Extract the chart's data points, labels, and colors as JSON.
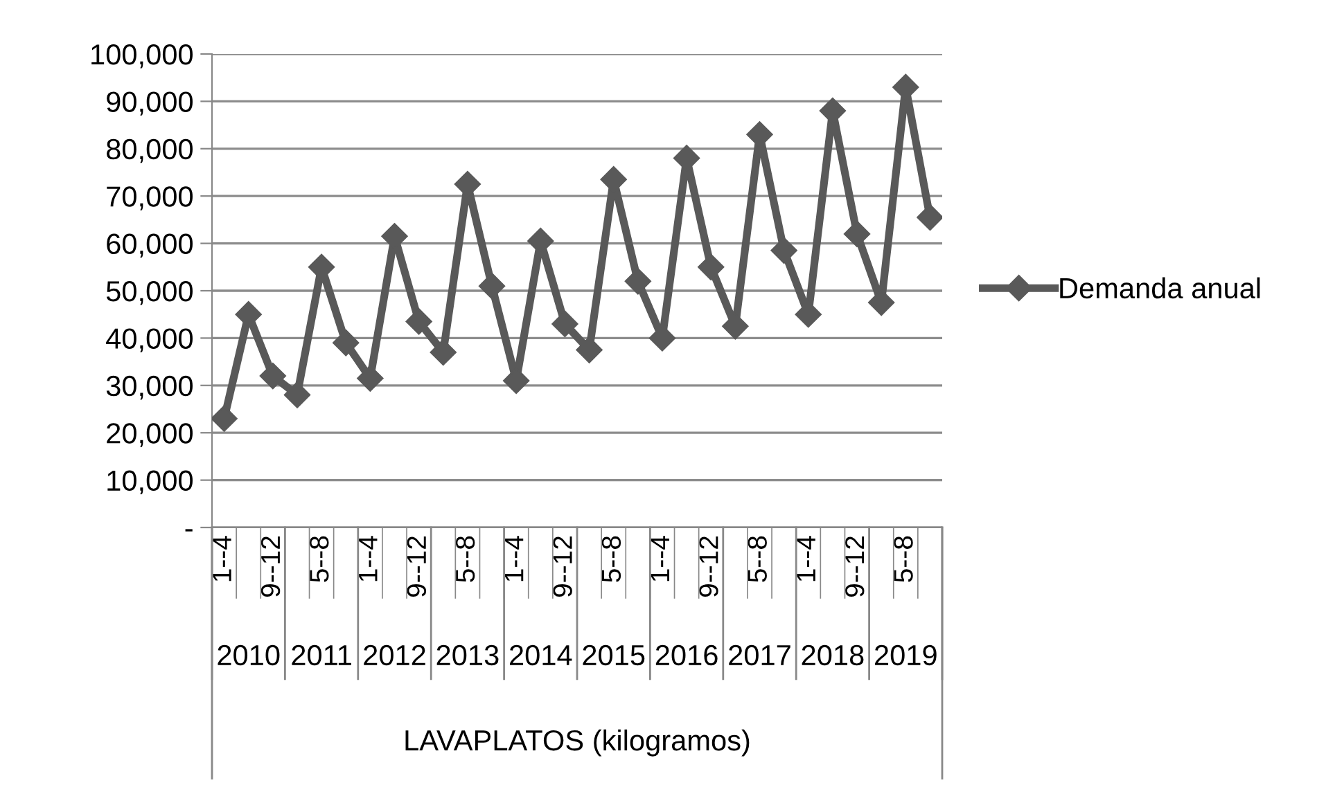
{
  "chart_data": {
    "type": "line",
    "categories": [
      "1--4",
      null,
      "9--12",
      null,
      "5--8",
      null,
      "1--4",
      null,
      "9--12",
      null,
      "5--8",
      null,
      "1--4",
      null,
      "9--12",
      null,
      "5--8",
      null,
      "1--4",
      null,
      "9--12",
      null,
      "5--8",
      null,
      "1--4",
      null,
      "9--12",
      null,
      "5--8",
      null
    ],
    "series": [
      {
        "name": "Demanda anual",
        "color": "#595959",
        "values": [
          23000,
          45000,
          32000,
          28000,
          55000,
          39000,
          31500,
          61500,
          43500,
          37000,
          72500,
          51000,
          31000,
          60500,
          43000,
          37500,
          73500,
          52000,
          40000,
          78000,
          55000,
          42500,
          83000,
          58500,
          45000,
          88000,
          62000,
          47500,
          93000,
          65500
        ]
      }
    ],
    "xlabel": "LAVAPLATOS (kilogramos)",
    "annotations": [
      "2010",
      "2011",
      "2012",
      "2013",
      "2014",
      "2015",
      "2016",
      "2017",
      "2018",
      "2019"
    ],
    "ylim": [
      0,
      100000
    ],
    "yticks": [
      {
        "value": 0,
        "label": "-"
      },
      {
        "value": 10000,
        "label": "10,000"
      },
      {
        "value": 20000,
        "label": "20,000"
      },
      {
        "value": 30000,
        "label": "30,000"
      },
      {
        "value": 40000,
        "label": "40,000"
      },
      {
        "value": 50000,
        "label": "50,000"
      },
      {
        "value": 60000,
        "label": "60,000"
      },
      {
        "value": 70000,
        "label": "70,000"
      },
      {
        "value": 80000,
        "label": "80,000"
      },
      {
        "value": 90000,
        "label": "90,000"
      },
      {
        "value": 100000,
        "label": "100,000"
      }
    ],
    "grid": "y",
    "legend": "right",
    "marker": "diamond",
    "line_style": "solid"
  }
}
